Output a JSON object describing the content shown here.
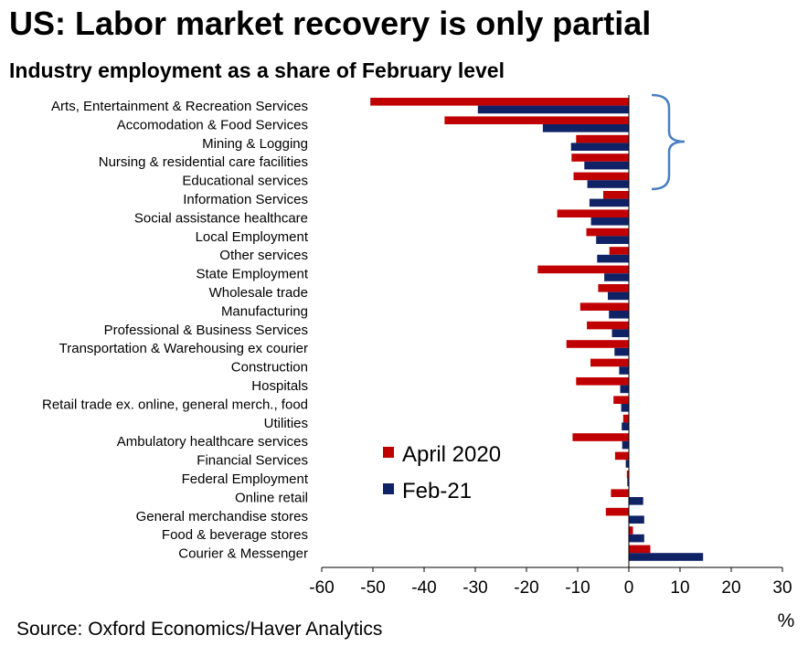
{
  "title": "US: Labor market recovery is only partial",
  "subtitle": "Industry employment as a share of February level",
  "source": "Source: Oxford Economics/Haver Analytics",
  "colors": {
    "april": "#c00000",
    "feb": "#0f2266",
    "bracket": "#4a7ec2"
  },
  "chart_data": {
    "type": "bar",
    "orientation": "horizontal",
    "categories": [
      "Arts, Entertainment & Recreation Services",
      "Accomodation & Food Services",
      "Mining & Logging",
      "Nursing & residential care facilities",
      "Educational services",
      "Information Services",
      "Social assistance healthcare",
      "Local Employment",
      "Other services",
      "State Employment",
      "Wholesale trade",
      "Manufacturing",
      "Professional & Business Services",
      "Transportation & Warehousing ex courier",
      "Construction",
      "Hospitals",
      "Retail trade ex. online, general merch., food",
      "Utilities",
      "Ambulatory healthcare services",
      "Financial Services",
      "Federal Employment",
      "Online retail",
      "General merchandise stores",
      "Food & beverage stores",
      "Courier & Messenger"
    ],
    "series": [
      {
        "name": "April 2020",
        "values": [
          -50.5,
          -36,
          -10.3,
          -11.2,
          -10.8,
          -5,
          -14,
          -8.3,
          -3.8,
          -17.8,
          -6,
          -9.5,
          -8.2,
          -12.2,
          -7.5,
          -10.3,
          -3,
          -1.1,
          -11,
          -2.7,
          -0.4,
          -3.5,
          -4.5,
          0.8,
          4.2
        ]
      },
      {
        "name": "Feb-21",
        "values": [
          -29.5,
          -16.8,
          -11.3,
          -8.7,
          -8.1,
          -7.7,
          -7.4,
          -6.4,
          -6.2,
          -4.8,
          -4.1,
          -3.9,
          -3.3,
          -2.8,
          -1.9,
          -1.7,
          -1.5,
          -1.4,
          -1.3,
          -0.6,
          -0.3,
          2.8,
          3,
          3,
          14.5
        ]
      }
    ],
    "xlim": [
      -60,
      30
    ],
    "xticks": [
      -60,
      -50,
      -40,
      -30,
      -20,
      -10,
      0,
      10,
      20,
      30
    ],
    "xunit": "%",
    "legend_position": "bottom-center",
    "annotation": "bracket grouping the top five industries"
  }
}
